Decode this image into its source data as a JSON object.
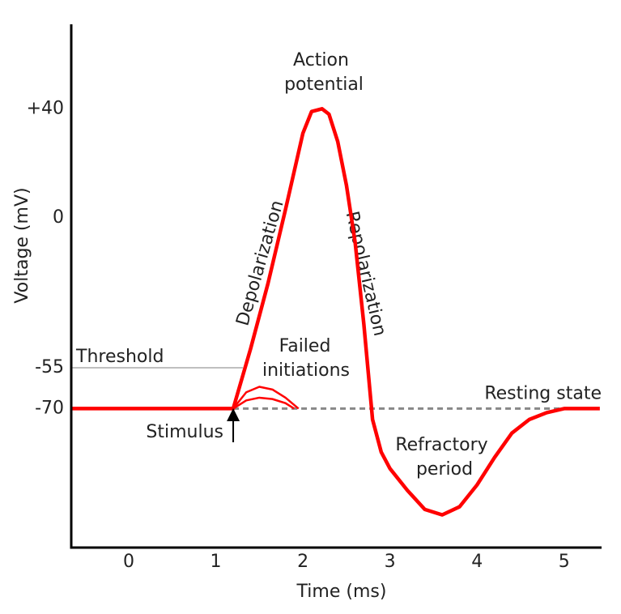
{
  "chart_data": {
    "type": "line",
    "y_label": "Voltage (mV)",
    "x_label": "Time (ms)",
    "xlim": [
      -0.66,
      5.43
    ],
    "xticks": [
      0,
      1,
      2,
      3,
      4,
      5
    ],
    "ylim": [
      -121,
      71
    ],
    "yticks": [
      {
        "value": 40,
        "label": "+40"
      },
      0,
      -55,
      -70
    ],
    "grid": false,
    "series": [
      {
        "color": "#ff0000",
        "x": [
          -0.66,
          1.2,
          1.4,
          1.6,
          1.8,
          2.0,
          2.1,
          2.22,
          2.3,
          2.4,
          2.5,
          2.6,
          2.7,
          2.8,
          2.9,
          3.0,
          3.2,
          3.4,
          3.6,
          3.8,
          4.0,
          4.2,
          4.4,
          4.6,
          4.8,
          5.0,
          5.41
        ],
        "values": [
          -70,
          -70,
          -48,
          -24,
          3,
          31,
          39,
          40,
          38,
          28,
          12,
          -9,
          -39,
          -74,
          -86,
          -92,
          -100,
          -107,
          -109,
          -106,
          -98,
          -88,
          -79,
          -74,
          -71.5,
          -70,
          -70
        ]
      },
      {
        "color": "#ff0000",
        "x": [
          1.2,
          1.35,
          1.5,
          1.65,
          1.8,
          1.95
        ],
        "values": [
          -70,
          -64,
          -62,
          -63,
          -66,
          -70
        ]
      },
      {
        "color": "#ff0000",
        "x": [
          1.2,
          1.35,
          1.5,
          1.65,
          1.8,
          1.9
        ],
        "values": [
          -70,
          -67,
          -66,
          -66.5,
          -68,
          -70
        ]
      }
    ],
    "reference_lines": [
      {
        "label": "Threshold",
        "value": -55,
        "x_end": 1.31,
        "color": "#aaaaaa",
        "dashed": false
      },
      {
        "label": "Resting state",
        "value": -70,
        "x_start": 1.2,
        "color": "#888888",
        "dashed": true
      }
    ],
    "annotations": {
      "action_potential": [
        "Action",
        "potential"
      ],
      "depolarization": "Depolarization",
      "repolarization": "Repolarization",
      "failed_initiations": [
        "Failed",
        "initiations"
      ],
      "refractory_period": [
        "Refractory",
        "period"
      ],
      "stimulus": {
        "text": "Stimulus",
        "x": 1.2
      }
    }
  }
}
